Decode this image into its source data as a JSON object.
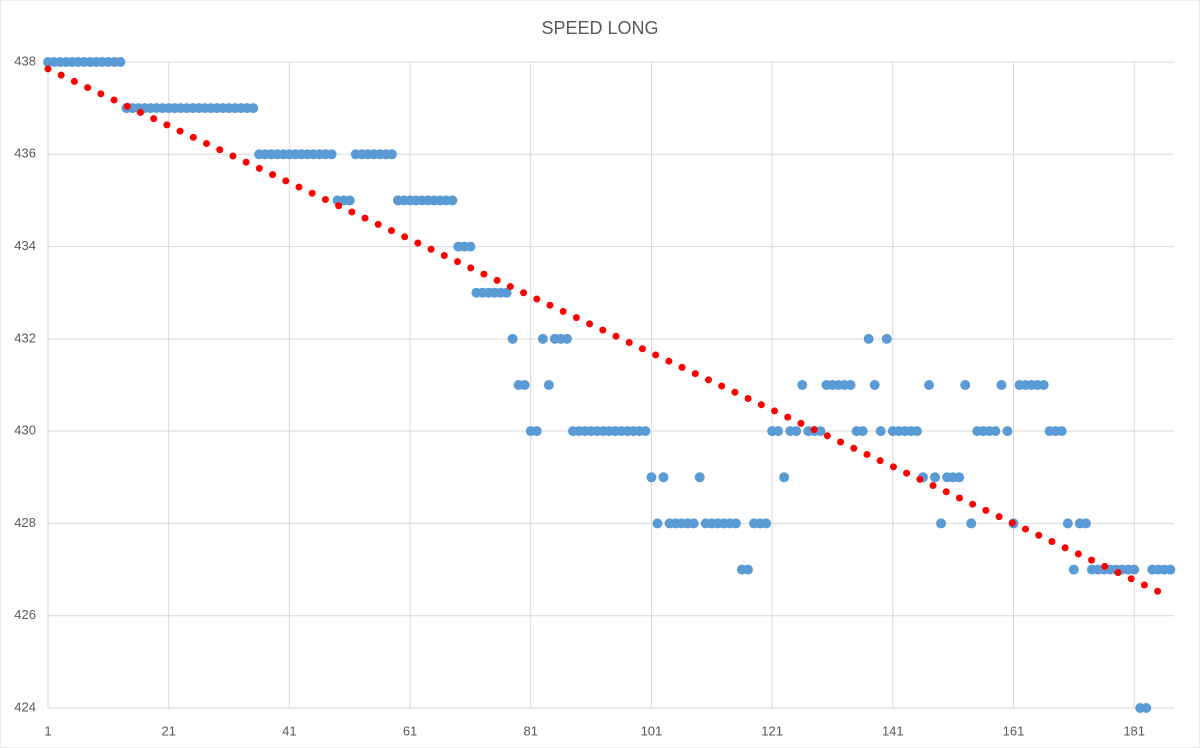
{
  "chart_data": {
    "type": "scatter",
    "title": "SPEED LONG",
    "x": [
      1,
      2,
      3,
      4,
      5,
      6,
      7,
      8,
      9,
      10,
      11,
      12,
      13,
      14,
      15,
      16,
      17,
      18,
      19,
      20,
      21,
      22,
      23,
      24,
      25,
      26,
      27,
      28,
      29,
      30,
      31,
      32,
      33,
      34,
      35,
      36,
      37,
      38,
      39,
      40,
      41,
      42,
      43,
      44,
      45,
      46,
      47,
      48,
      49,
      50,
      51,
      52,
      53,
      54,
      55,
      56,
      57,
      58,
      59,
      60,
      61,
      62,
      63,
      64,
      65,
      66,
      67,
      68,
      69,
      70,
      71,
      72,
      73,
      74,
      75,
      76,
      77,
      78,
      79,
      80,
      81,
      82,
      83,
      84,
      85,
      86,
      87,
      88,
      89,
      90,
      91,
      92,
      93,
      94,
      95,
      96,
      97,
      98,
      99,
      100,
      101,
      102,
      103,
      104,
      105,
      106,
      107,
      108,
      109,
      110,
      111,
      112,
      113,
      114,
      115,
      116,
      117,
      118,
      119,
      120,
      121,
      122,
      123,
      124,
      125,
      126,
      127,
      128,
      129,
      130,
      131,
      132,
      133,
      134,
      135,
      136,
      137,
      138,
      139,
      140,
      141,
      142,
      143,
      144,
      145,
      146,
      147,
      148,
      149,
      150,
      151,
      152,
      153,
      154,
      155,
      156,
      157,
      158,
      159,
      160,
      161,
      162,
      163,
      164,
      165,
      166,
      167,
      168,
      169,
      170,
      171,
      172,
      173,
      174,
      175,
      176,
      177,
      178,
      179,
      180,
      181,
      182,
      183,
      184,
      185,
      186,
      187
    ],
    "series": [
      {
        "color": "#5b9bd5",
        "values": [
          438,
          438,
          438,
          438,
          438,
          438,
          438,
          438,
          438,
          438,
          438,
          438,
          438,
          437,
          437,
          437,
          437,
          437,
          437,
          437,
          437,
          437,
          437,
          437,
          437,
          437,
          437,
          437,
          437,
          437,
          437,
          437,
          437,
          437,
          437,
          436,
          436,
          436,
          436,
          436,
          436,
          436,
          436,
          436,
          436,
          436,
          436,
          436,
          435,
          435,
          435,
          436,
          436,
          436,
          436,
          436,
          436,
          436,
          435,
          435,
          435,
          435,
          435,
          435,
          435,
          435,
          435,
          435,
          434,
          434,
          434,
          433,
          433,
          433,
          433,
          433,
          433,
          432,
          431,
          431,
          430,
          430,
          432,
          431,
          432,
          432,
          432,
          430,
          430,
          430,
          430,
          430,
          430,
          430,
          430,
          430,
          430,
          430,
          430,
          430,
          429,
          428,
          429,
          428,
          428,
          428,
          428,
          428,
          429,
          428,
          428,
          428,
          428,
          428,
          428,
          427,
          427,
          428,
          428,
          428,
          430,
          430,
          429,
          430,
          430,
          431,
          430,
          430,
          430,
          431,
          431,
          431,
          431,
          431,
          430,
          430,
          432,
          431,
          430,
          432,
          430,
          430,
          430,
          430,
          430,
          429,
          431,
          429,
          428,
          429,
          429,
          429,
          431,
          428,
          430,
          430,
          430,
          430,
          431,
          430,
          428,
          431,
          431,
          431,
          431,
          431,
          430,
          430,
          430,
          428,
          427,
          428,
          428,
          427,
          427,
          427,
          427,
          427,
          427,
          427,
          427,
          424,
          424,
          427,
          427,
          427,
          427
        ]
      }
    ],
    "trendline": {
      "color": "#ff0000",
      "x": [
        1,
        187
      ],
      "values": [
        437.85,
        426.4
      ]
    },
    "xlim": [
      1,
      187.6
    ],
    "ylim": [
      424,
      438
    ],
    "xticks": [
      1,
      21,
      41,
      61,
      81,
      101,
      121,
      141,
      161,
      181
    ],
    "yticks": [
      424,
      426,
      428,
      430,
      432,
      434,
      436,
      438
    ],
    "grid": true
  }
}
